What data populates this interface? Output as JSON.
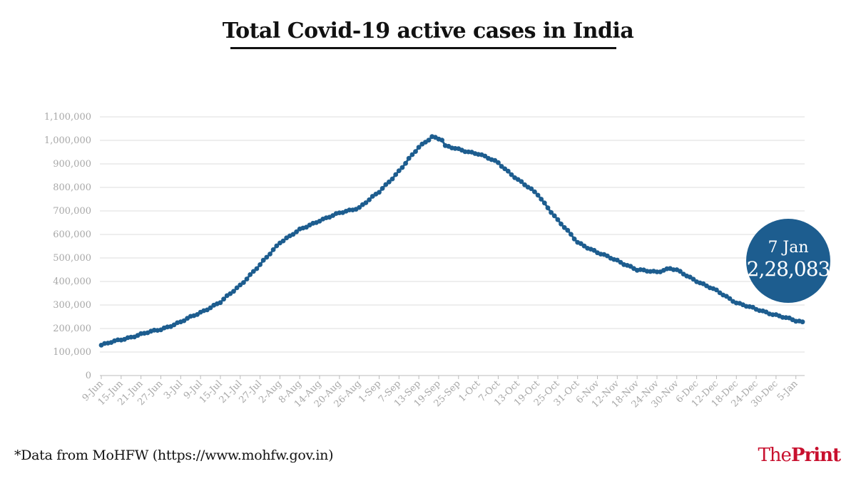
{
  "title": "Total Covid-19 active cases in India",
  "source": "*Data from MoHFW (https://www.mohfw.gov.in)",
  "brand": {
    "prefix": "The",
    "suffix": "Print",
    "color": "#c8102e"
  },
  "callout": {
    "date": "7 Jan",
    "value": "2,28,083",
    "color": "#1d5d8f"
  },
  "chart_data": {
    "type": "line",
    "title": "Total Covid-19 active cases in India",
    "x_tick_labels": [
      "9-Jun",
      "15-Jun",
      "21-Jun",
      "27-Jun",
      "3-Jul",
      "9-Jul",
      "15-Jul",
      "21-Jul",
      "27-Jul",
      "2-Aug",
      "8-Aug",
      "14-Aug",
      "20-Aug",
      "26-Aug",
      "1-Sep",
      "7-Sep",
      "13-Sep",
      "19-Sep",
      "25-Sep",
      "1-Oct",
      "7-Oct",
      "13-Oct",
      "19-Oct",
      "25-Oct",
      "31-Oct",
      "6-Nov",
      "12-Nov",
      "18-Nov",
      "24-Nov",
      "30-Nov",
      "6-Dec",
      "12-Dec",
      "18-Dec",
      "24-Dec",
      "30-Dec",
      "5-Jan"
    ],
    "y_tick_labels": [
      "0",
      "100,000",
      "200,000",
      "300,000",
      "400,000",
      "500,000",
      "600,000",
      "700,000",
      "800,000",
      "900,000",
      "1,000,000",
      "1,100,000"
    ],
    "ylim": [
      0,
      1100000
    ],
    "grid": true,
    "line_color": "#1d5d8f",
    "series": [
      {
        "x_start": "9-Jun",
        "x_end": "7-Jan",
        "x_interval": "1 day",
        "anchors": [
          [
            "9-Jun",
            129000
          ],
          [
            "15-Jun",
            153000
          ],
          [
            "21-Jun",
            175000
          ],
          [
            "27-Jun",
            197000
          ],
          [
            "3-Jul",
            227000
          ],
          [
            "9-Jul",
            269000
          ],
          [
            "15-Jul",
            311000
          ],
          [
            "21-Jul",
            385000
          ],
          [
            "27-Jul",
            470000
          ],
          [
            "2-Aug",
            567000
          ],
          [
            "8-Aug",
            619000
          ],
          [
            "14-Aug",
            660000
          ],
          [
            "20-Aug",
            690000
          ],
          [
            "26-Aug",
            715000
          ],
          [
            "1-Sep",
            780000
          ],
          [
            "7-Sep",
            870000
          ],
          [
            "13-Sep",
            970000
          ],
          [
            "17-Sep",
            1017000
          ],
          [
            "20-Sep",
            1003000
          ],
          [
            "21-Sep",
            975000
          ],
          [
            "25-Sep",
            962000
          ],
          [
            "1-Oct",
            943000
          ],
          [
            "7-Oct",
            905000
          ],
          [
            "13-Oct",
            832000
          ],
          [
            "19-Oct",
            770000
          ],
          [
            "25-Oct",
            660000
          ],
          [
            "31-Oct",
            568000
          ],
          [
            "6-Nov",
            522000
          ],
          [
            "12-Nov",
            490000
          ],
          [
            "18-Nov",
            448000
          ],
          [
            "24-Nov",
            442000
          ],
          [
            "28-Nov",
            455000
          ],
          [
            "30-Nov",
            447000
          ],
          [
            "6-Dec",
            403000
          ],
          [
            "12-Dec",
            360000
          ],
          [
            "18-Dec",
            311000
          ],
          [
            "24-Dec",
            281000
          ],
          [
            "30-Dec",
            258000
          ],
          [
            "5-Jan",
            232000
          ],
          [
            "7-Jan",
            228083
          ]
        ]
      }
    ]
  }
}
